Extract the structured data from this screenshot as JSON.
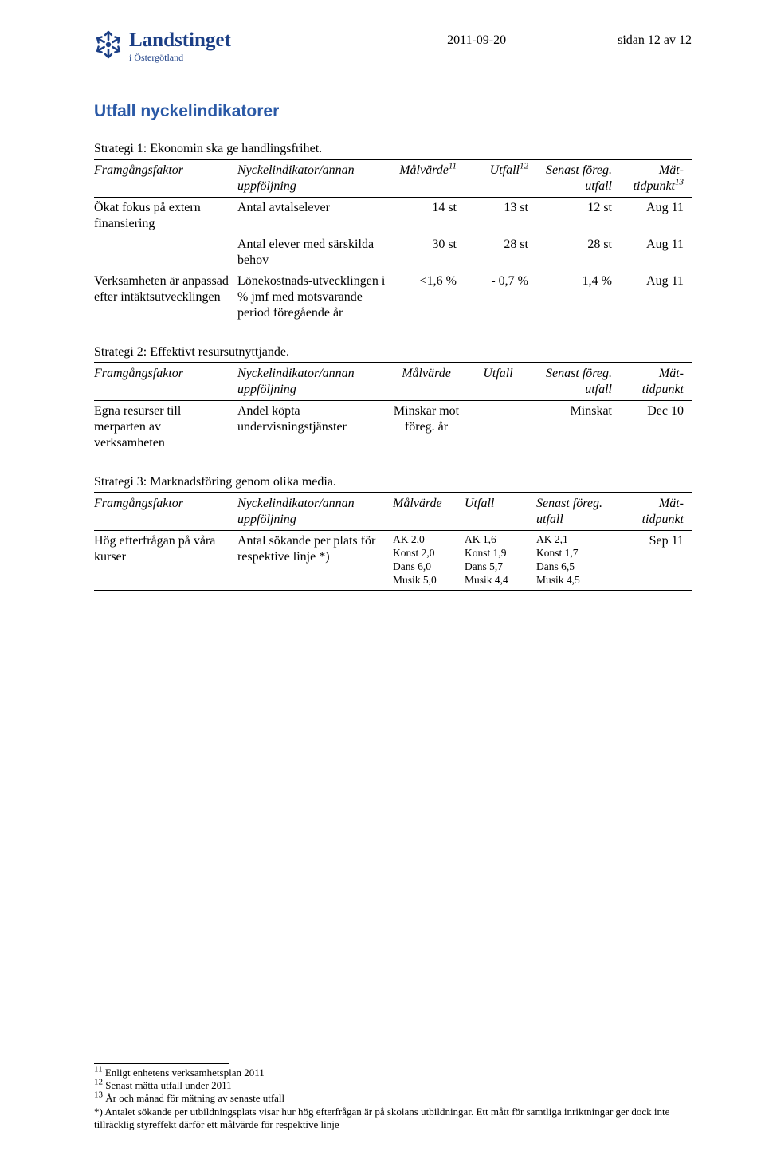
{
  "header": {
    "org_name": "Landstinget",
    "org_sub": "i Östergötland",
    "date": "2011-09-20",
    "page_info": "sidan 12 av 12"
  },
  "section_title": "Utfall nyckelindikatorer",
  "strategy1": {
    "label": "Strategi 1: Ekonomin ska ge handlingsfrihet.",
    "columns": {
      "ff": "Framgångsfaktor",
      "ind": "Nyckelindikator/annan uppföljning",
      "mal": "Målvärde",
      "mal_sup": "11",
      "utf": "Utfall",
      "utf_sup": "12",
      "sen": "Senast föreg. utfall",
      "mat": "Mät-tidpunkt",
      "mat_sup": "13"
    },
    "rows": [
      {
        "ff": "Ökat fokus på extern finansiering",
        "ind": "Antal avtalselever",
        "mal": "14 st",
        "utf": "13 st",
        "sen": "12 st",
        "mat": "Aug 11"
      },
      {
        "ff": "",
        "ind": "Antal elever med särskilda behov",
        "mal": "30 st",
        "utf": "28 st",
        "sen": "28 st",
        "mat": "Aug 11"
      },
      {
        "ff": "Verksamheten är anpassad efter intäktsutvecklingen",
        "ind": "Lönekostnads-utvecklingen i % jmf med motsvarande period föregående år",
        "mal": "<1,6 %",
        "utf": "- 0,7 %",
        "sen": "1,4 %",
        "mat": "Aug 11"
      }
    ]
  },
  "strategy2": {
    "label": "Strategi 2: Effektivt resursutnyttjande.",
    "columns": {
      "ff": "Framgångsfaktor",
      "ind": "Nyckelindikator/annan uppföljning",
      "mal": "Målvärde",
      "utf": "Utfall",
      "sen": "Senast föreg. utfall",
      "mat": "Mät-tidpunkt"
    },
    "rows": [
      {
        "ff": "Egna resurser till merparten av verksamheten",
        "ind": "Andel köpta undervisningstjänster",
        "mal": "Minskar mot föreg. år",
        "utf": "",
        "sen": "Minskat",
        "mat": "Dec 10"
      }
    ]
  },
  "strategy3": {
    "label": "Strategi 3: Marknadsföring genom olika media.",
    "columns": {
      "ff": "Framgångsfaktor",
      "ind": "Nyckelindikator/annan uppföljning",
      "mal": "Målvärde",
      "utf": "Utfall",
      "sen": "Senast föreg. utfall",
      "mat": "Mät-tidpunkt"
    },
    "rows": [
      {
        "ff": "Hög efterfrågan på våra kurser",
        "ind": "Antal sökande per plats för respektive linje *)",
        "mal": "AK 2,0\nKonst 2,0\nDans 6,0\nMusik 5,0",
        "utf": "AK 1,6\nKonst 1,9\nDans 5,7\nMusik 4,4",
        "sen": "AK 2,1\nKonst 1,7\nDans 6,5\nMusik 4,5",
        "mat": "Sep 11"
      }
    ]
  },
  "footnotes": {
    "f11": "Enligt enhetens verksamhetsplan 2011",
    "f12": "Senast mätta utfall under 2011",
    "f13": "År och månad för mätning av senaste utfall",
    "star": "*) Antalet sökande per utbildningsplats visar hur hög efterfrågan är på skolans utbildningar. Ett mått för samtliga inriktningar ger dock inte tillräcklig styreffekt därför ett målvärde för respektive linje"
  },
  "colors": {
    "brand": "#1c3f86",
    "heading": "#2a59a6",
    "text": "#000000",
    "background": "#ffffff"
  }
}
